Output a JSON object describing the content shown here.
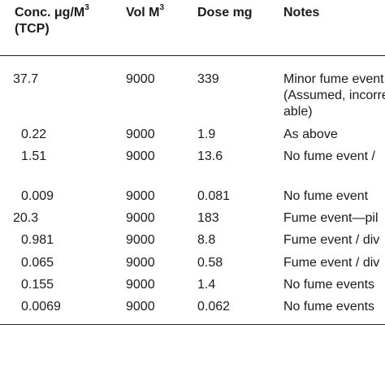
{
  "table": {
    "headers": {
      "conc_line1": "Conc. μg/M",
      "conc_sup": "3",
      "conc_line2": "(TCP)",
      "vol": "Vol M",
      "vol_sup": "3",
      "dose": "Dose mg",
      "notes": "Notes"
    },
    "rows": [
      {
        "conc": "37.7",
        "vol": "9000",
        "dose": "339",
        "notes": [
          "Minor fume event",
          "(Assumed, incorre",
          "able)"
        ]
      },
      {
        "conc": "0.22",
        "vol": "9000",
        "dose": "1.9",
        "notes": [
          "As above"
        ]
      },
      {
        "conc": "1.51",
        "vol": "9000",
        "dose": "13.6",
        "notes": [
          "No fume event /"
        ]
      },
      {
        "conc": "0.009",
        "vol": "9000",
        "dose": "0.081",
        "notes": [
          "No fume event"
        ]
      },
      {
        "conc": "20.3",
        "vol": "9000",
        "dose": "183",
        "notes": [
          "Fume event—pil"
        ]
      },
      {
        "conc": "0.981",
        "vol": "9000",
        "dose": "8.8",
        "notes": [
          "Fume event / div"
        ]
      },
      {
        "conc": "0.065",
        "vol": "9000",
        "dose": "0.58",
        "notes": [
          "Fume event / div"
        ]
      },
      {
        "conc": "0.155",
        "vol": "9000",
        "dose": "1.4",
        "notes": [
          "No fume events"
        ]
      },
      {
        "conc": "0.0069",
        "vol": "9000",
        "dose": "0.062",
        "notes": [
          "No fume events"
        ]
      }
    ]
  }
}
